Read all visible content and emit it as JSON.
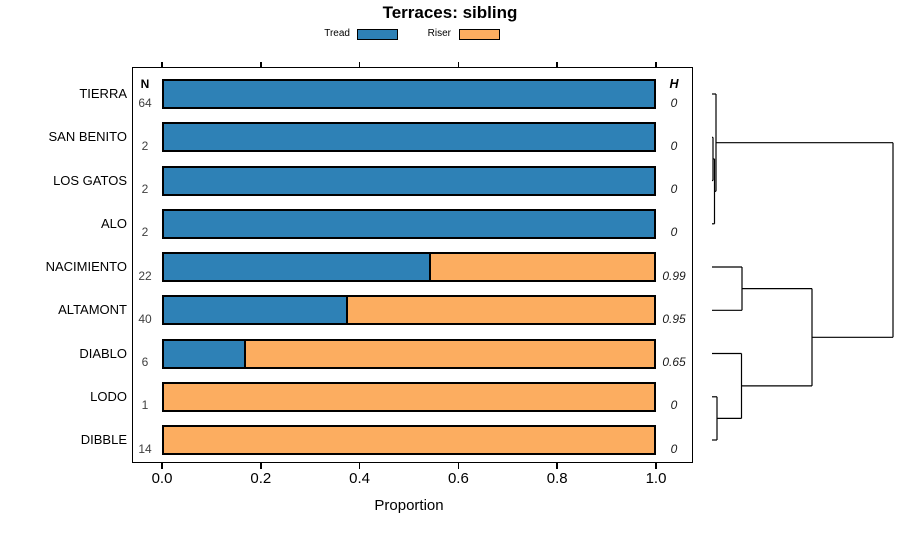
{
  "chart_data": {
    "type": "bar",
    "variant": "horizontal-stacked-proportion-with-dendrogram",
    "title": "Terraces: sibling",
    "xlabel": "Proportion",
    "xlim": [
      0,
      1
    ],
    "xticks": [
      {
        "value": 0.0,
        "label": "0.0"
      },
      {
        "value": 0.2,
        "label": "0.2"
      },
      {
        "value": 0.4,
        "label": "0.4"
      },
      {
        "value": 0.6,
        "label": "0.6"
      },
      {
        "value": 0.8,
        "label": "0.8"
      },
      {
        "value": 1.0,
        "label": "1.0"
      }
    ],
    "columns": {
      "n": "N",
      "h": "H"
    },
    "legend": [
      {
        "label": "Tread",
        "color": "#2E81B6"
      },
      {
        "label": "Riser",
        "color": "#FCAD60"
      }
    ],
    "bar_border_color": "#000000",
    "rows": [
      {
        "label": "TIERRA",
        "n": "64",
        "tread": 1.0,
        "riser": 0.0,
        "h": "0"
      },
      {
        "label": "SAN BENITO",
        "n": "2",
        "tread": 1.0,
        "riser": 0.0,
        "h": "0"
      },
      {
        "label": "LOS GATOS",
        "n": "2",
        "tread": 1.0,
        "riser": 0.0,
        "h": "0"
      },
      {
        "label": "ALO",
        "n": "2",
        "tread": 1.0,
        "riser": 0.0,
        "h": "0"
      },
      {
        "label": "NACIMIENTO",
        "n": "22",
        "tread": 0.545,
        "riser": 0.455,
        "h": "0.99"
      },
      {
        "label": "ALTAMONT",
        "n": "40",
        "tread": 0.375,
        "riser": 0.625,
        "h": "0.95"
      },
      {
        "label": "DIABLO",
        "n": "6",
        "tread": 0.167,
        "riser": 0.833,
        "h": "0.65"
      },
      {
        "label": "LODO",
        "n": "1",
        "tread": 0.0,
        "riser": 1.0,
        "h": "0"
      },
      {
        "label": "DIBBLE",
        "n": "14",
        "tread": 0.0,
        "riser": 1.0,
        "h": "0"
      }
    ],
    "dendrogram": {
      "newick": "((TIERRA,((SAN BENITO,LOS GATOS),ALO)),((NACIMIENTO,ALTAMONT),(DIABLO,(LODO,DIBBLE))))",
      "segments": [
        [
          712,
          94.0,
          716,
          94.0
        ],
        [
          712,
          137.3,
          713,
          137.3
        ],
        [
          712,
          180.5,
          713,
          180.5
        ],
        [
          713,
          137.3,
          713,
          180.5
        ],
        [
          713,
          158.9,
          714.5,
          158.9
        ],
        [
          712,
          223.8,
          714.5,
          223.8
        ],
        [
          714.5,
          158.9,
          714.5,
          223.8
        ],
        [
          714.5,
          191.3,
          716,
          191.3
        ],
        [
          716,
          94.0,
          716,
          191.3
        ],
        [
          716,
          142.7,
          893,
          142.7
        ],
        [
          712,
          267.0,
          742,
          267.0
        ],
        [
          712,
          310.3,
          742,
          310.3
        ],
        [
          742,
          267.0,
          742,
          310.3
        ],
        [
          742,
          288.6,
          812,
          288.6
        ],
        [
          712,
          353.5,
          741.5,
          353.5
        ],
        [
          712,
          396.8,
          717,
          396.8
        ],
        [
          712,
          440.0,
          717,
          440.0
        ],
        [
          717,
          396.8,
          717,
          440.0
        ],
        [
          717,
          418.4,
          741.5,
          418.4
        ],
        [
          741.5,
          353.5,
          741.5,
          418.4
        ],
        [
          741.5,
          385.9,
          812,
          385.9
        ],
        [
          812,
          288.6,
          812,
          385.9
        ],
        [
          812,
          337.3,
          893,
          337.3
        ],
        [
          893,
          142.7,
          893,
          337.3
        ]
      ]
    }
  }
}
